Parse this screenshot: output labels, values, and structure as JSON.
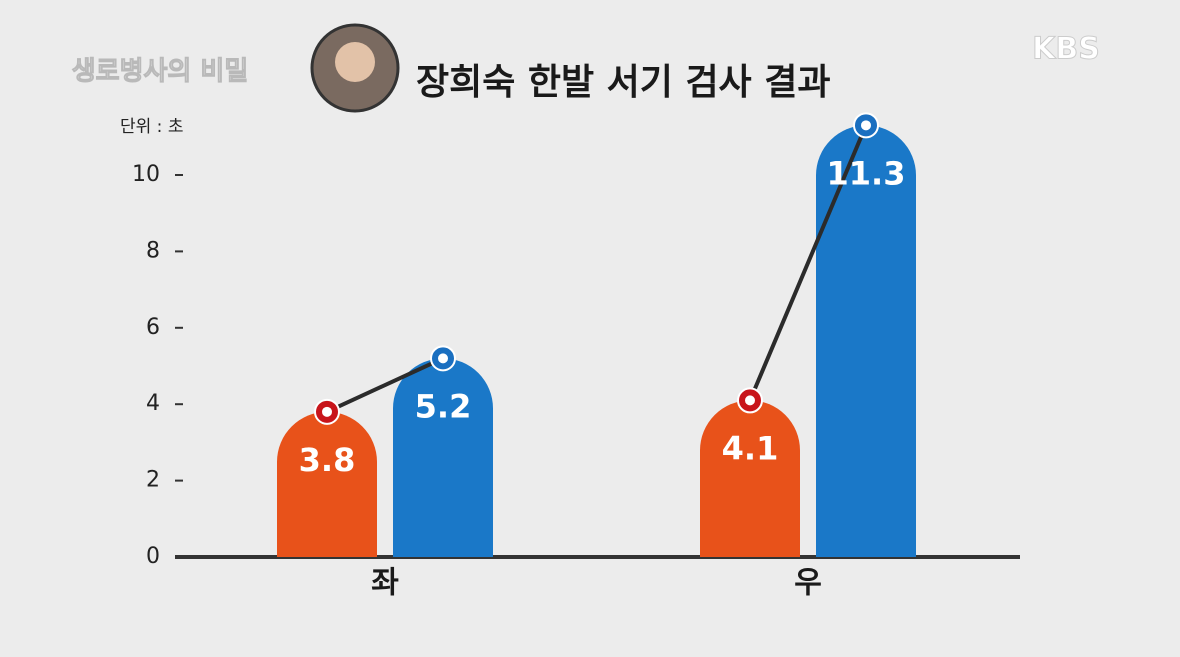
{
  "chart_data": {
    "type": "bar",
    "title": "장희숙 한발 서기 검사 결과",
    "unit_label": "단위 : 초",
    "show_logo": "생로병사의 비밀",
    "channel_logo": "KBS",
    "categories": [
      "좌",
      "우"
    ],
    "series": [
      {
        "color": "#e8521a",
        "values": [
          3.8,
          4.1
        ],
        "marker_color": "#c8151b"
      },
      {
        "color": "#1a78c8",
        "values": [
          5.2,
          11.3
        ],
        "marker_color": "#1a6fc0"
      }
    ],
    "connector_color": "#2b2b2b",
    "ylim": [
      0,
      12
    ],
    "yticks": [
      0,
      2,
      4,
      6,
      8,
      10
    ]
  }
}
